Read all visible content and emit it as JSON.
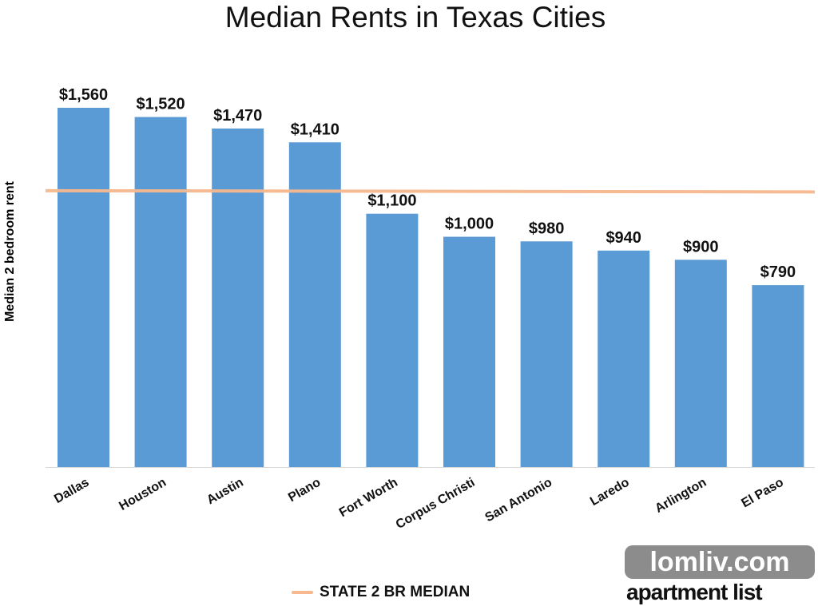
{
  "chart_data": {
    "type": "bar",
    "title": "Median Rents in Texas Cities",
    "xlabel": "",
    "ylabel": "Median 2 bedroom rent",
    "categories": [
      "Dallas",
      "Houston",
      "Austin",
      "Plano",
      "Fort Worth",
      "Corpus Christi",
      "San Antonio",
      "Laredo",
      "Arlington",
      "El Paso"
    ],
    "values": [
      1560,
      1520,
      1470,
      1410,
      1100,
      1000,
      980,
      940,
      900,
      790
    ],
    "data_labels": [
      "$1,560",
      "$1,520",
      "$1,470",
      "$1,410",
      "$1,100",
      "$1,000",
      "$980",
      "$940",
      "$900",
      "$790"
    ],
    "reference_line": {
      "name": "STATE 2 BR MEDIAN",
      "value": 1200,
      "color": "#f7b88f"
    },
    "ylim": [
      0,
      1560
    ],
    "grid": false,
    "legend": {
      "placement": "bottom",
      "entries": [
        "STATE 2 BR MEDIAN"
      ]
    },
    "bar_color": "#5b9bd5"
  },
  "logo": {
    "brand": "apartment list",
    "watermark": "lomliv.com"
  }
}
